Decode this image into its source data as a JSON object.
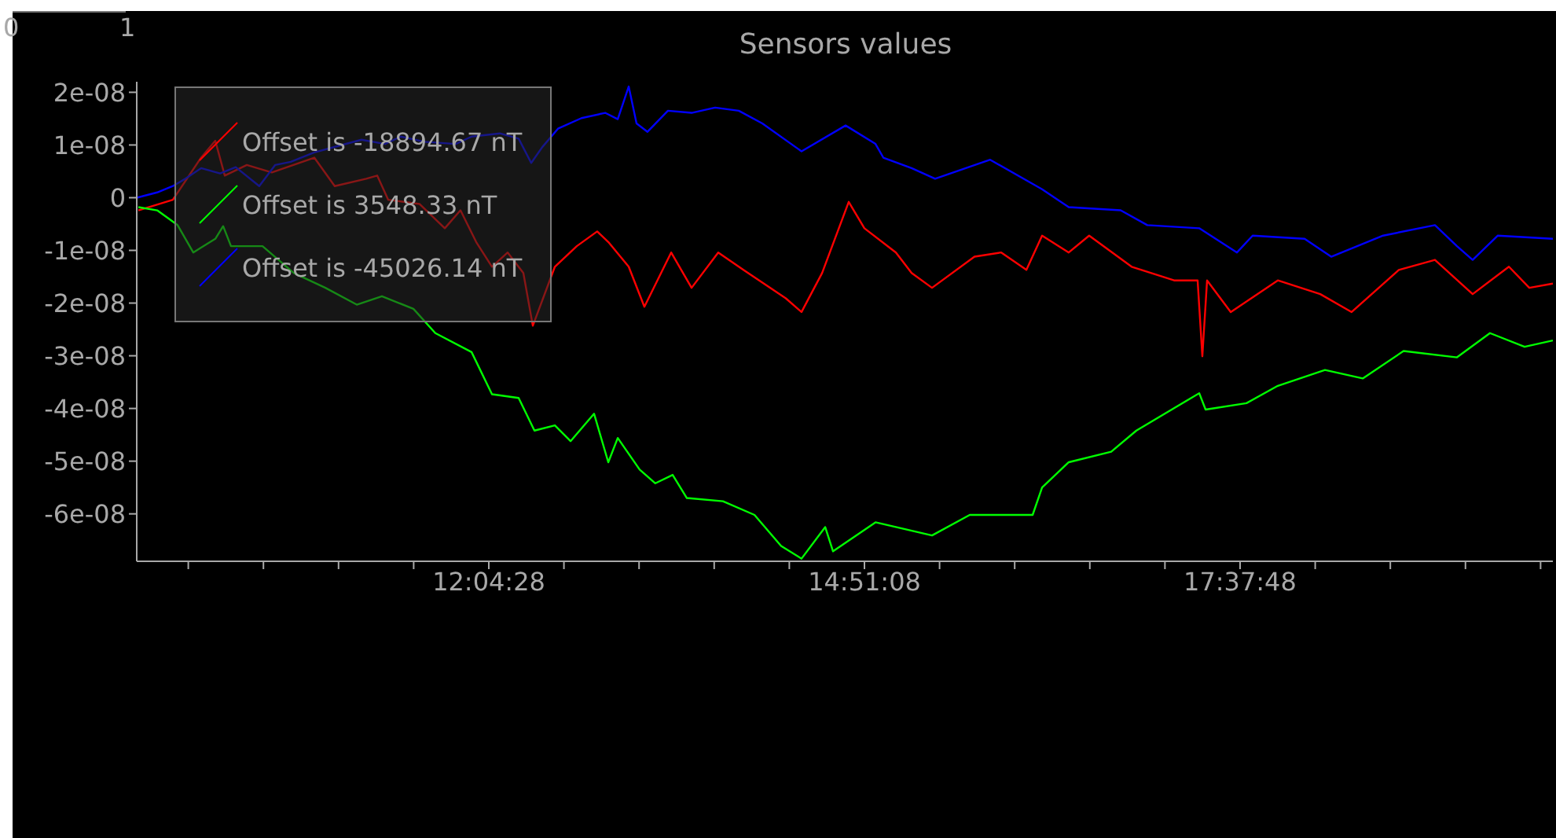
{
  "chart_data": {
    "type": "line",
    "title": "Sensors values",
    "annotations": [
      "0",
      "1"
    ],
    "xlim": [
      9.471,
      19.943
    ],
    "xticks": [
      {
        "value": 9.8522,
        "label": null
      },
      {
        "value": 10.4078,
        "label": null
      },
      {
        "value": 10.9633,
        "label": null
      },
      {
        "value": 11.5189,
        "label": null
      },
      {
        "value": 12.0744,
        "label": "12:04:28"
      },
      {
        "value": 12.63,
        "label": null
      },
      {
        "value": 13.1856,
        "label": null
      },
      {
        "value": 13.7411,
        "label": null
      },
      {
        "value": 14.2967,
        "label": null
      },
      {
        "value": 14.8522,
        "label": "14:51:08"
      },
      {
        "value": 15.4078,
        "label": null
      },
      {
        "value": 15.9633,
        "label": null
      },
      {
        "value": 16.5189,
        "label": null
      },
      {
        "value": 17.0744,
        "label": null
      },
      {
        "value": 17.63,
        "label": "17:37:48"
      },
      {
        "value": 18.1856,
        "label": null
      },
      {
        "value": 18.7411,
        "label": null
      },
      {
        "value": 19.2967,
        "label": null
      },
      {
        "value": 19.8522,
        "label": null
      }
    ],
    "ylim": [
      -6.9e-08,
      2.2e-08
    ],
    "yticks": [
      {
        "value": 2e-08,
        "label": "2e-08"
      },
      {
        "value": 1e-08,
        "label": "1e-08"
      },
      0,
      {
        "value": -1e-08,
        "label": "-1e-08"
      },
      {
        "value": -2e-08,
        "label": "-2e-08"
      },
      {
        "value": -3e-08,
        "label": "-3e-08"
      },
      {
        "value": -4e-08,
        "label": "-4e-08"
      },
      {
        "value": -5e-08,
        "label": "-5e-08"
      },
      {
        "value": -6e-08,
        "label": "-6e-08"
      }
    ],
    "grid": false,
    "legend": "top left",
    "marker": "none",
    "line_style": "solid",
    "series": [
      {
        "name": "Offset is -18894.67 nT",
        "color": "#ff0000",
        "x": [
          9.483,
          9.738,
          9.947,
          10.052,
          10.122,
          10.285,
          10.47,
          10.784,
          10.935,
          11.168,
          11.249,
          11.331,
          11.563,
          11.749,
          11.865,
          11.981,
          12.098,
          12.214,
          12.33,
          12.4,
          12.563,
          12.725,
          12.876,
          12.958,
          13.109,
          13.225,
          13.423,
          13.574,
          13.771,
          13.957,
          14.271,
          14.387,
          14.539,
          14.736,
          14.852,
          15.085,
          15.201,
          15.352,
          15.666,
          15.864,
          16.05,
          16.166,
          16.363,
          16.514,
          16.828,
          17.142,
          17.316,
          17.351,
          17.386,
          17.561,
          17.909,
          18.223,
          18.455,
          18.804,
          19.071,
          19.35,
          19.618,
          19.769,
          19.943
        ],
        "values": [
          -2.4e-09,
          -4e-10,
          7.6e-09,
          1.08e-08,
          4.2e-09,
          6.2e-09,
          4.8e-09,
          7.6e-09,
          2.2e-09,
          3.6e-09,
          4.2e-09,
          -4e-10,
          -1.2e-09,
          -5.8e-09,
          -2.4e-09,
          -8.4e-09,
          -1.31e-08,
          -1.04e-08,
          -1.43e-08,
          -2.43e-08,
          -1.31e-08,
          -9.2e-09,
          -6.4e-09,
          -8.4e-09,
          -1.31e-08,
          -2.07e-08,
          -1.04e-08,
          -1.71e-08,
          -1.04e-08,
          -1.37e-08,
          -1.91e-08,
          -2.17e-08,
          -1.43e-08,
          -8e-10,
          -5.8e-09,
          -1.04e-08,
          -1.43e-08,
          -1.71e-08,
          -1.12e-08,
          -1.04e-08,
          -1.37e-08,
          -7.2e-09,
          -1.04e-08,
          -7.2e-09,
          -1.31e-08,
          -1.57e-08,
          -1.57e-08,
          -3.01e-08,
          -1.57e-08,
          -2.17e-08,
          -1.57e-08,
          -1.83e-08,
          -2.17e-08,
          -1.37e-08,
          -1.18e-08,
          -1.83e-08,
          -1.31e-08,
          -1.71e-08,
          -1.63e-08
        ]
      },
      {
        "name": "Offset is 3548.33 nT",
        "color": "#00ff00",
        "x": [
          9.483,
          9.622,
          9.773,
          9.889,
          10.052,
          10.11,
          10.168,
          10.401,
          10.633,
          10.866,
          11.098,
          11.284,
          11.517,
          11.679,
          11.947,
          12.098,
          12.295,
          12.412,
          12.563,
          12.679,
          12.853,
          12.958,
          13.028,
          13.19,
          13.306,
          13.434,
          13.539,
          13.806,
          14.039,
          14.236,
          14.387,
          14.562,
          14.62,
          14.934,
          15.352,
          15.631,
          16.096,
          16.166,
          16.363,
          16.677,
          16.863,
          17.328,
          17.375,
          17.677,
          17.909,
          18.258,
          18.537,
          18.839,
          19.234,
          19.478,
          19.734,
          19.943
        ],
        "values": [
          -1.8e-09,
          -2.4e-09,
          -5.2e-09,
          -1.04e-08,
          -7.8e-09,
          -5.4e-09,
          -9.2e-09,
          -9.2e-09,
          -1.43e-08,
          -1.71e-08,
          -2.03e-08,
          -1.87e-08,
          -2.11e-08,
          -2.57e-08,
          -2.93e-08,
          -3.73e-08,
          -3.8e-08,
          -4.42e-08,
          -4.32e-08,
          -4.62e-08,
          -4.1e-08,
          -5.02e-08,
          -4.56e-08,
          -5.16e-08,
          -5.42e-08,
          -5.26e-08,
          -5.7e-08,
          -5.76e-08,
          -6.02e-08,
          -6.61e-08,
          -6.85e-08,
          -6.25e-08,
          -6.71e-08,
          -6.16e-08,
          -6.41e-08,
          -6.02e-08,
          -6.02e-08,
          -5.5e-08,
          -5.02e-08,
          -4.82e-08,
          -4.42e-08,
          -3.71e-08,
          -4.02e-08,
          -3.9e-08,
          -3.57e-08,
          -3.27e-08,
          -3.43e-08,
          -2.91e-08,
          -3.03e-08,
          -2.57e-08,
          -2.83e-08,
          -2.71e-08
        ]
      },
      {
        "name": "Offset is -45026.14 nT",
        "color": "#0000ff",
        "x": [
          9.471,
          9.622,
          9.738,
          9.831,
          9.947,
          10.087,
          10.203,
          10.377,
          10.494,
          10.61,
          10.784,
          10.959,
          11.133,
          11.307,
          11.424,
          11.598,
          11.83,
          11.947,
          12.156,
          12.295,
          12.388,
          12.47,
          12.586,
          12.76,
          12.935,
          13.028,
          13.109,
          13.167,
          13.248,
          13.399,
          13.574,
          13.748,
          13.923,
          14.097,
          14.387,
          14.713,
          14.934,
          14.992,
          15.201,
          15.375,
          15.782,
          16.166,
          16.363,
          16.747,
          16.944,
          17.328,
          17.607,
          17.723,
          18.107,
          18.304,
          18.688,
          19.071,
          19.234,
          19.35,
          19.536,
          19.943
        ],
        "values": [
          0,
          1e-09,
          2.2e-09,
          3.6e-09,
          5.6e-09,
          4.6e-09,
          5.8e-09,
          2.2e-09,
          6.2e-09,
          6.8e-09,
          8.6e-09,
          9.8e-09,
          1.1e-08,
          1.02e-08,
          1.16e-08,
          1.06e-08,
          1.02e-08,
          1.16e-08,
          1.22e-08,
          1.12e-08,
          6.6e-09,
          9.6e-09,
          1.31e-08,
          1.51e-08,
          1.61e-08,
          1.49e-08,
          2.11e-08,
          1.41e-08,
          1.25e-08,
          1.65e-08,
          1.61e-08,
          1.71e-08,
          1.65e-08,
          1.41e-08,
          8.8e-09,
          1.37e-08,
          1.02e-08,
          7.6e-09,
          5.6e-09,
          3.6e-09,
          7.2e-09,
          1.6e-09,
          -1.8e-09,
          -2.4e-09,
          -5.2e-09,
          -5.8e-09,
          -1.04e-08,
          -7.2e-09,
          -7.8e-09,
          -1.12e-08,
          -7.2e-09,
          -5.2e-09,
          -9.2e-09,
          -1.18e-08,
          -7.2e-09,
          -7.8e-09
        ]
      }
    ]
  }
}
